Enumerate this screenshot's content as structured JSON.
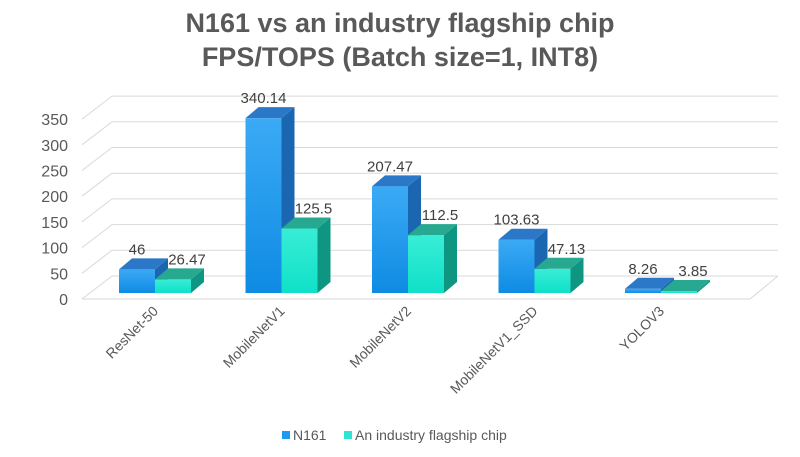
{
  "chart_data": {
    "type": "bar",
    "title": [
      "N161 vs an industry flagship chip",
      "FPS/TOPS (Batch size=1, INT8)"
    ],
    "categories": [
      "ResNet-50",
      "MobileNetV1",
      "MobileNetV2",
      "MobileNetV1_SSD",
      "YOLOV3"
    ],
    "series": [
      {
        "name": "N161",
        "values": [
          46,
          340.14,
          207.47,
          103.63,
          8.26
        ],
        "labels": [
          "46",
          "340.14",
          "207.47",
          "103.63",
          "8.26"
        ],
        "color": "#1E9BF0"
      },
      {
        "name": "An industry flagship chip",
        "values": [
          26.47,
          125.5,
          112.5,
          47.13,
          3.85
        ],
        "labels": [
          "26.47",
          "125.5",
          "112.5",
          "47.13",
          "3.85"
        ],
        "color": "#2EE6CF"
      }
    ],
    "yticks": [
      "0",
      "50",
      "100",
      "150",
      "200",
      "250",
      "300",
      "350"
    ],
    "ylim": [
      0,
      350
    ],
    "grid": true,
    "legend": "bottom"
  }
}
